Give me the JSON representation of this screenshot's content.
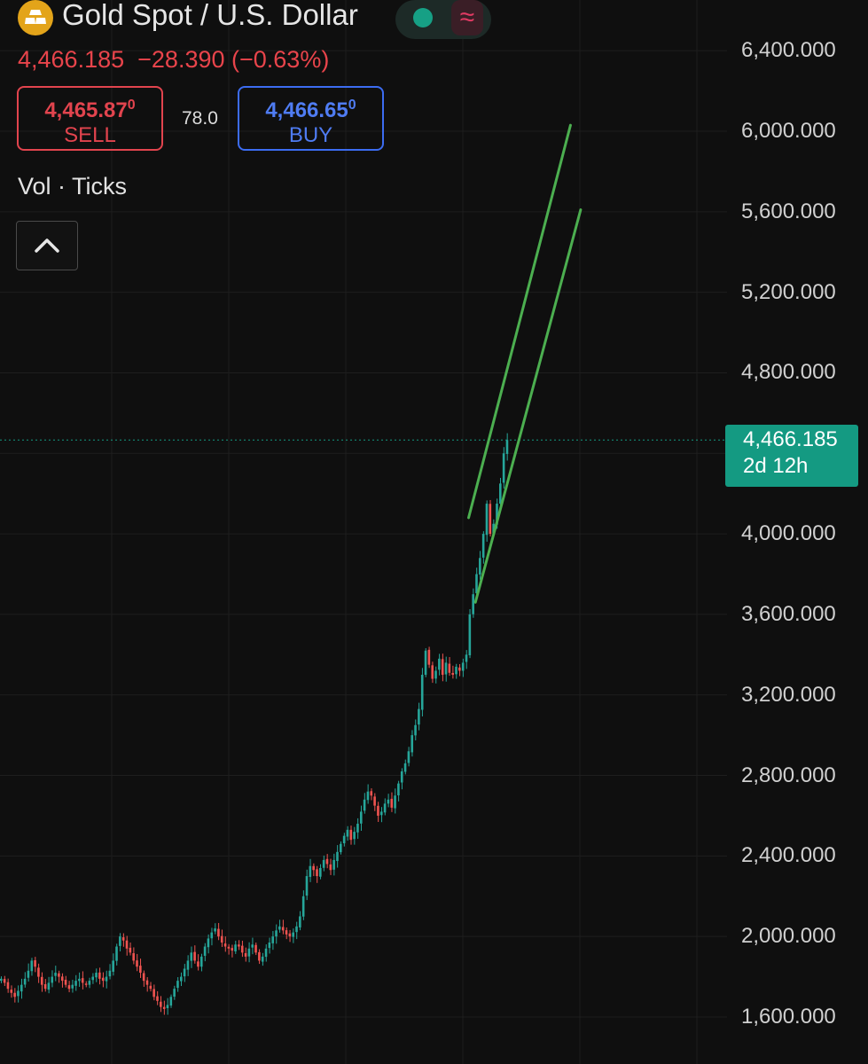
{
  "header": {
    "title": "Gold Spot / U.S. Dollar",
    "last_price": "4,466.185",
    "change": "−28.390",
    "change_pct": "(−0.63%)",
    "down_color": "#e8444b",
    "icons": [
      "gold-bars-icon",
      "status-dot-icon",
      "wave-icon"
    ]
  },
  "trade": {
    "sell_price_main": "4,465.87",
    "sell_price_sup": "0",
    "sell_label": "SELL",
    "spread": "78.0",
    "buy_price_main": "4,466.65",
    "buy_price_sup": "0",
    "buy_label": "BUY"
  },
  "indicator": {
    "label": "Vol · Ticks"
  },
  "current_tag": {
    "price": "4,466.185",
    "countdown": "2d 12h",
    "color": "#149a82"
  },
  "chart_data": {
    "type": "candlestick",
    "ylim": [
      1500,
      6500
    ],
    "y_ticks": [
      "6,400.000",
      "6,000.000",
      "5,600.000",
      "5,200.000",
      "4,800.000",
      "4,000.000",
      "3,600.000",
      "3,200.000",
      "2,800.000",
      "2,400.000",
      "2,000.000",
      "1,600.000"
    ],
    "y_tick_values": [
      6400,
      6000,
      5600,
      5200,
      4800,
      4000,
      3600,
      3200,
      2800,
      2400,
      2000,
      1600
    ],
    "current_price": 4466.185,
    "up_color": "#26a69a",
    "down_color": "#ef5350",
    "trend_color": "#4caf50",
    "closes": [
      1790,
      1770,
      1740,
      1720,
      1700,
      1730,
      1760,
      1790,
      1830,
      1880,
      1850,
      1800,
      1760,
      1740,
      1770,
      1800,
      1820,
      1800,
      1780,
      1760,
      1740,
      1760,
      1780,
      1790,
      1770,
      1760,
      1780,
      1800,
      1820,
      1790,
      1780,
      1800,
      1830,
      1880,
      1950,
      2000,
      1980,
      1940,
      1920,
      1880,
      1850,
      1820,
      1780,
      1760,
      1740,
      1700,
      1680,
      1650,
      1640,
      1660,
      1700,
      1740,
      1780,
      1800,
      1840,
      1880,
      1920,
      1880,
      1850,
      1900,
      1950,
      1990,
      2020,
      2040,
      2000,
      1970,
      1950,
      1940,
      1930,
      1960,
      1950,
      1920,
      1900,
      1940,
      1960,
      1920,
      1880,
      1900,
      1940,
      1970,
      2000,
      2030,
      2050,
      2030,
      2010,
      2000,
      2020,
      2050,
      2100,
      2200,
      2300,
      2350,
      2330,
      2300,
      2340,
      2380,
      2360,
      2330,
      2380,
      2420,
      2460,
      2500,
      2530,
      2480,
      2520,
      2560,
      2620,
      2680,
      2720,
      2700,
      2650,
      2600,
      2620,
      2660,
      2680,
      2640,
      2700,
      2760,
      2820,
      2860,
      2920,
      3000,
      3050,
      3130,
      3300,
      3420,
      3350,
      3280,
      3320,
      3380,
      3300,
      3360,
      3310,
      3300,
      3340,
      3320,
      3360,
      3400,
      3600,
      3700,
      3800,
      3880,
      4000,
      4150,
      4000,
      4050,
      4150,
      4250,
      4400,
      4466
    ],
    "trendlines": [
      {
        "name": "channel-upper",
        "from": {
          "index": 138,
          "value": 4080
        },
        "to": {
          "index": 168,
          "value": 6030
        }
      },
      {
        "name": "channel-lower",
        "from": {
          "index": 140,
          "value": 3660
        },
        "to": {
          "index": 171,
          "value": 5610
        }
      }
    ]
  }
}
